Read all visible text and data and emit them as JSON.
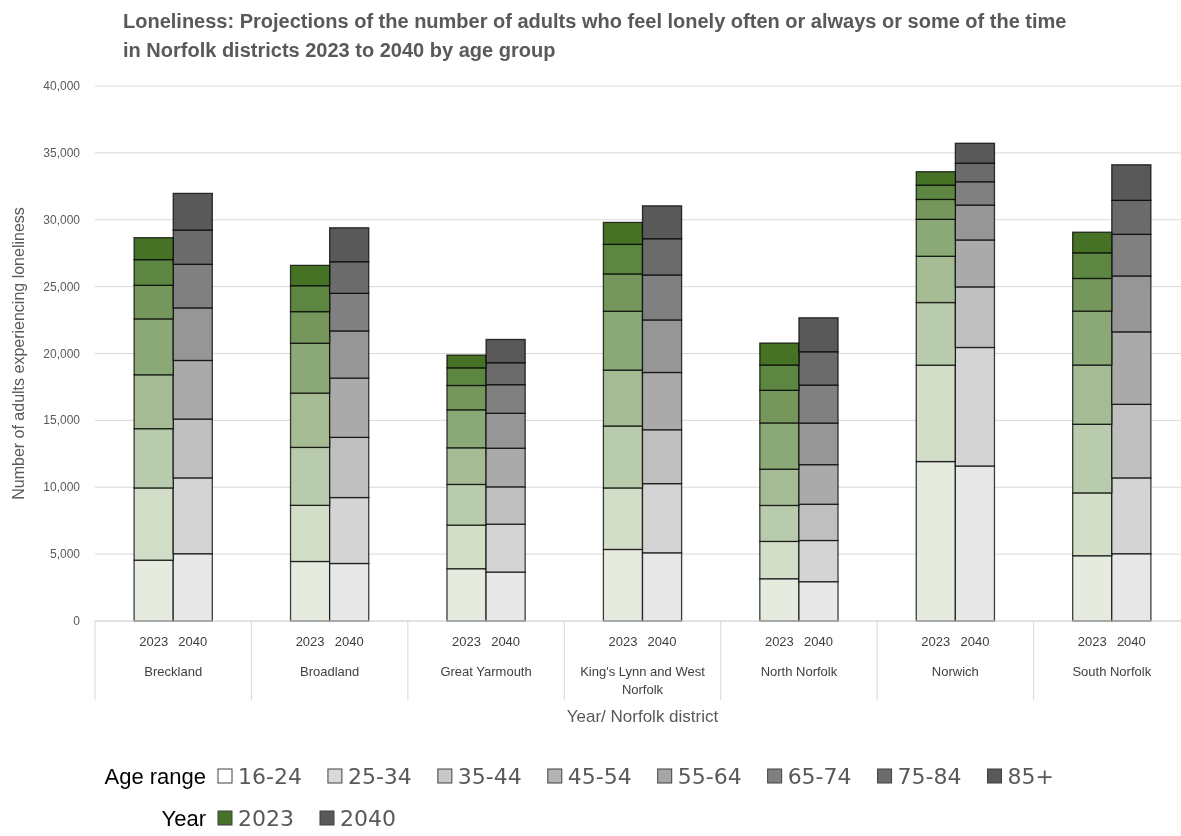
{
  "chart_data": {
    "type": "bar",
    "stacked": true,
    "title": "Loneliness: Projections of the number of adults who feel lonely often or always or some of the time in Norfolk districts 2023 to 2040 by age group",
    "xlabel": "Year/ Norfolk district",
    "ylabel": "Number of adults experiencing loneliness",
    "legend_title": "Age range",
    "legend": "bottom",
    "grid": "y",
    "categories": [
      null,
      "2023",
      "2040",
      null,
      null,
      "2023",
      "2040",
      null,
      null,
      "2023",
      "2040",
      null,
      null,
      "2023",
      "2040",
      null,
      null,
      "2023",
      "2040",
      null,
      null,
      "2023",
      "2040",
      null,
      null,
      "2023",
      "2040",
      null
    ],
    "annotations": [
      "Breckland",
      "Broadland",
      "Great Yarmouth",
      "King's Lynn and West Norfolk",
      "North Norfolk",
      "Norwich",
      "South Norfolk",
      "Year"
    ],
    "ylim": [
      0,
      40000
    ],
    "yticks": [
      0,
      {
        "value": 5000,
        "label": "5,000"
      },
      {
        "value": 10000,
        "label": "10,000"
      },
      {
        "value": 15000,
        "label": "15,000"
      },
      {
        "value": 20000,
        "label": "20,000"
      },
      {
        "value": 25000,
        "label": "25,000"
      },
      {
        "value": 30000,
        "label": "30,000"
      },
      {
        "value": 35000,
        "label": "35,000"
      },
      {
        "value": 40000,
        "label": "40,000"
      }
    ],
    "series": [
      {
        "name": "16-24",
        "color": "#ffffff",
        "colors": [
          null,
          "#e6ebe0",
          "#e8e8e8",
          null,
          null,
          "#e6ebe0",
          "#e8e8e8",
          null,
          null,
          "#e6ebe0",
          "#e8e8e8",
          null,
          null,
          "#e6ebe0",
          "#e8e8e8",
          null,
          null,
          "#e6ebe0",
          "#e8e8e8",
          null,
          null,
          "#e6ebe0",
          "#e8e8e8",
          null,
          null,
          "#e6ebe0",
          "#e8e8e8",
          null
        ],
        "values": [
          null,
          4550,
          5030,
          null,
          null,
          4450,
          4300,
          null,
          null,
          3910,
          3660,
          null,
          null,
          5350,
          5100,
          null,
          null,
          3160,
          2940,
          null,
          null,
          11920,
          11590,
          null,
          null,
          4880,
          5030,
          null
        ]
      },
      {
        "name": "25-34",
        "color": "#d9d9d9",
        "colors": [
          null,
          "#d2dec8",
          "#d4d4d4",
          null,
          null,
          "#d2dec8",
          "#d4d4d4",
          null,
          null,
          "#d2dec8",
          "#d4d4d4",
          null,
          null,
          "#d2dec8",
          "#d4d4d4",
          null,
          null,
          "#d2dec8",
          "#d4d4d4",
          null,
          null,
          "#d2dec8",
          "#d4d4d4",
          null,
          null,
          "#d2dec8",
          "#d4d4d4",
          null
        ],
        "values": [
          null,
          5400,
          5670,
          null,
          null,
          4200,
          4930,
          null,
          null,
          3260,
          3580,
          null,
          null,
          4600,
          5170,
          null,
          null,
          2790,
          3080,
          null,
          null,
          7210,
          8860,
          null,
          null,
          4700,
          5670,
          null
        ]
      },
      {
        "name": "35-44",
        "color": "#c8c8c8",
        "colors": [
          null,
          "#b9cbad",
          "#bfbfbf",
          null,
          null,
          "#b9cbad",
          "#bfbfbf",
          null,
          null,
          "#b9cbad",
          "#bfbfbf",
          null,
          null,
          "#b9cbad",
          "#bfbfbf",
          null,
          null,
          "#b9cbad",
          "#bfbfbf",
          null,
          null,
          "#b9cbad",
          "#bfbfbf",
          null,
          null,
          "#b9cbad",
          "#bfbfbf",
          null
        ],
        "values": [
          null,
          4430,
          4400,
          null,
          null,
          4330,
          4500,
          null,
          null,
          3040,
          2790,
          null,
          null,
          4630,
          4030,
          null,
          null,
          2690,
          2710,
          null,
          null,
          4680,
          4530,
          null,
          null,
          5130,
          5500,
          null
        ]
      },
      {
        "name": "45-54",
        "color": "#b4b4b4",
        "colors": [
          null,
          "#a5bb93",
          "#aaaaaa",
          null,
          null,
          "#a5bb93",
          "#aaaaaa",
          null,
          null,
          "#a5bb93",
          "#aaaaaa",
          null,
          null,
          "#a5bb93",
          "#aaaaaa",
          null,
          null,
          "#a5bb93",
          "#aaaaaa",
          null,
          null,
          "#a5bb93",
          "#aaaaaa",
          null,
          null,
          "#a5bb93",
          "#aaaaaa",
          null
        ],
        "values": [
          null,
          4030,
          4380,
          null,
          null,
          4060,
          4430,
          null,
          null,
          2740,
          2890,
          null,
          null,
          4180,
          4280,
          null,
          null,
          2710,
          2960,
          null,
          null,
          3460,
          3510,
          null,
          null,
          4430,
          5420,
          null
        ]
      },
      {
        "name": "55-64",
        "color": "#a6a6a6",
        "colors": [
          null,
          "#8ba877",
          "#969696",
          null,
          null,
          "#8ba877",
          "#969696",
          null,
          null,
          "#8ba877",
          "#969696",
          null,
          null,
          "#8ba877",
          "#969696",
          null,
          null,
          "#8ba877",
          "#969696",
          null,
          null,
          "#8ba877",
          "#969696",
          null,
          null,
          "#8ba877",
          "#969696",
          null
        ],
        "values": [
          null,
          4180,
          3930,
          null,
          null,
          3730,
          3530,
          null,
          null,
          2840,
          2610,
          null,
          null,
          4400,
          3930,
          null,
          null,
          3460,
          3110,
          null,
          null,
          2760,
          2610,
          null,
          null,
          4030,
          4180,
          null
        ]
      },
      {
        "name": "65-74",
        "color": "#808080",
        "colors": [
          null,
          "#76975c",
          "#808080",
          null,
          null,
          "#76975c",
          "#808080",
          null,
          null,
          "#76975c",
          "#808080",
          null,
          null,
          "#76975c",
          "#808080",
          null,
          null,
          "#76975c",
          "#808080",
          null,
          null,
          "#76975c",
          "#808080",
          null,
          null,
          "#76975c",
          "#808080",
          null
        ],
        "values": [
          null,
          2510,
          3260,
          null,
          null,
          2360,
          2810,
          null,
          null,
          1820,
          2140,
          null,
          null,
          2790,
          3360,
          null,
          null,
          2440,
          2840,
          null,
          null,
          1490,
          1740,
          null,
          null,
          2440,
          3110,
          null
        ]
      },
      {
        "name": "75-84",
        "color": "#6b6b6b",
        "colors": [
          null,
          "#5c8641",
          "#6b6b6b",
          null,
          null,
          "#5c8641",
          "#6b6b6b",
          null,
          null,
          "#5c8641",
          "#6b6b6b",
          null,
          null,
          "#5c8641",
          "#6b6b6b",
          null,
          null,
          "#5c8641",
          "#6b6b6b",
          null,
          null,
          "#5c8641",
          "#6b6b6b",
          null,
          null,
          "#5c8641",
          "#6b6b6b",
          null
        ],
        "values": [
          null,
          1920,
          2560,
          null,
          null,
          1940,
          2360,
          null,
          null,
          1320,
          1640,
          null,
          null,
          2210,
          2710,
          null,
          null,
          1890,
          2490,
          null,
          null,
          1070,
          1390,
          null,
          null,
          1920,
          2540,
          null
        ]
      },
      {
        "name": "85+",
        "color": "#595959",
        "colors": [
          null,
          "#467226",
          "#595959",
          null,
          null,
          "#467226",
          "#595959",
          null,
          null,
          "#467226",
          "#595959",
          null,
          null,
          "#467226",
          "#595959",
          null,
          null,
          "#467226",
          "#595959",
          null,
          null,
          "#467226",
          "#595959",
          null,
          null,
          "#467226",
          "#595959",
          null
        ],
        "values": [
          null,
          1640,
          2740,
          null,
          null,
          1520,
          2540,
          null,
          null,
          950,
          1740,
          null,
          null,
          1640,
          2460,
          null,
          null,
          1640,
          2540,
          null,
          null,
          1000,
          1490,
          null,
          null,
          1540,
          2660,
          null
        ]
      },
      {
        "name": "2023",
        "color": "#467226",
        "values": [
          null,
          null,
          null,
          null,
          null,
          null,
          null,
          null,
          null,
          null,
          null,
          null,
          null,
          null,
          null,
          null,
          null,
          null,
          null,
          null,
          null,
          null,
          null,
          null,
          null,
          null,
          null,
          null
        ]
      },
      {
        "name": "2040",
        "color": "#595959",
        "values": [
          null,
          null,
          null,
          null,
          null,
          null,
          null,
          null,
          null,
          null,
          null,
          null,
          null,
          null,
          null,
          null,
          null,
          null,
          null,
          null,
          null,
          null,
          null,
          null,
          null,
          null,
          null,
          null
        ]
      }
    ]
  }
}
